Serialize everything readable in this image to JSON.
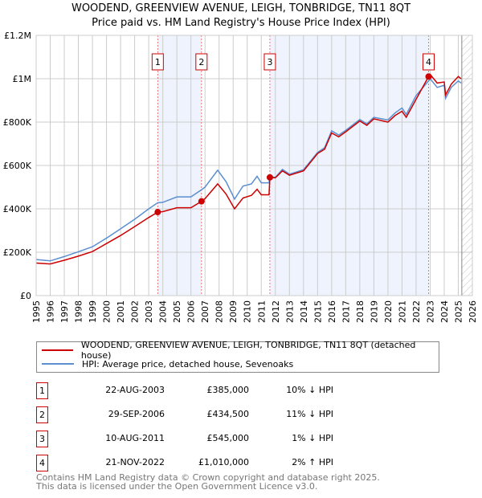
{
  "chart_data": {
    "type": "line",
    "title": "WOODEND, GREENVIEW AVENUE, LEIGH, TONBRIDGE, TN11 8QT",
    "subtitle": "Price paid vs. HM Land Registry's House Price Index (HPI)",
    "xlim": [
      1995,
      2026
    ],
    "ylim": [
      0,
      1200000
    ],
    "x_ticks": [
      "1995",
      "1996",
      "1997",
      "1998",
      "1999",
      "2000",
      "2001",
      "2002",
      "2003",
      "2004",
      "2005",
      "2006",
      "2007",
      "2008",
      "2009",
      "2010",
      "2011",
      "2012",
      "2013",
      "2014",
      "2015",
      "2016",
      "2017",
      "2018",
      "2019",
      "2020",
      "2021",
      "2022",
      "2023",
      "2024",
      "2025",
      "2026"
    ],
    "y_ticks": [
      {
        "v": 0,
        "label": "£0"
      },
      {
        "v": 200000,
        "label": "£200K"
      },
      {
        "v": 400000,
        "label": "£400K"
      },
      {
        "v": 600000,
        "label": "£600K"
      },
      {
        "v": 800000,
        "label": "£800K"
      },
      {
        "v": 1000000,
        "label": "£1M"
      },
      {
        "v": 1200000,
        "label": "£1.2M"
      }
    ],
    "grid": true,
    "series": [
      {
        "name": "WOODEND, GREENVIEW AVENUE, LEIGH, TONBRIDGE, TN11 8QT (detached house)",
        "color": "#cc0000",
        "x": [
          1995,
          1996,
          1997,
          1998,
          1999,
          2000,
          2001,
          2002,
          2003,
          2003.64,
          2004,
          2005,
          2006,
          2006.75,
          2007,
          2007.9,
          2008.5,
          2009.1,
          2009.7,
          2010.3,
          2010.7,
          2011,
          2011.55,
          2011.61,
          2012,
          2012.5,
          2013,
          2014,
          2015,
          2015.5,
          2016,
          2016.5,
          2017,
          2018,
          2018.5,
          2019,
          2020,
          2020.5,
          2021,
          2021.3,
          2022,
          2022.89,
          2023,
          2023.5,
          2024,
          2024.1,
          2024.5,
          2025,
          2025.2
        ],
        "y": [
          150000,
          146000,
          163000,
          182000,
          203000,
          240000,
          277000,
          318000,
          360000,
          385000,
          387000,
          405000,
          405000,
          434500,
          447000,
          515000,
          468000,
          400000,
          450000,
          462000,
          490000,
          465000,
          465000,
          545000,
          543000,
          575000,
          555000,
          575000,
          655000,
          675000,
          750000,
          732000,
          755000,
          805000,
          785000,
          815000,
          800000,
          830000,
          850000,
          822000,
          905000,
          1010000,
          1020000,
          980000,
          985000,
          925000,
          975000,
          1010000,
          1000000
        ]
      },
      {
        "name": "HPI: Average price, detached house, Sevenoaks",
        "color": "#5b8fd0",
        "x": [
          1995,
          1996,
          1997,
          1998,
          1999,
          2000,
          2001,
          2002,
          2003,
          2003.64,
          2004,
          2005,
          2006,
          2006.75,
          2007,
          2007.9,
          2008.5,
          2009.1,
          2009.7,
          2010.3,
          2010.7,
          2011,
          2011.55,
          2011.61,
          2012,
          2012.5,
          2013,
          2014,
          2015,
          2015.5,
          2016,
          2016.5,
          2017,
          2018,
          2018.5,
          2019,
          2020,
          2020.5,
          2021,
          2021.3,
          2022,
          2022.89,
          2023,
          2023.5,
          2024,
          2024.1,
          2024.5,
          2025,
          2025.2
        ],
        "y": [
          166000,
          160000,
          180000,
          202000,
          225000,
          265000,
          308000,
          352000,
          400000,
          428000,
          430000,
          455000,
          455000,
          488000,
          500000,
          578000,
          525000,
          445000,
          505000,
          515000,
          550000,
          520000,
          520000,
          548000,
          545000,
          582000,
          560000,
          580000,
          660000,
          682000,
          760000,
          740000,
          762000,
          812000,
          792000,
          822000,
          810000,
          842000,
          865000,
          835000,
          922000,
          990000,
          1000000,
          960000,
          970000,
          910000,
          960000,
          990000,
          980000
        ]
      }
    ],
    "sales": [
      {
        "num": "1",
        "x": 2003.64,
        "date": "22-AUG-2003",
        "price": "£385,000",
        "value": 385000,
        "hpi": "10% ↓ HPI"
      },
      {
        "num": "2",
        "x": 2006.75,
        "date": "29-SEP-2006",
        "price": "£434,500",
        "value": 434500,
        "hpi": "11% ↓ HPI"
      },
      {
        "num": "3",
        "x": 2011.61,
        "date": "10-AUG-2011",
        "price": "£545,000",
        "value": 545000,
        "hpi": "1% ↓ HPI"
      },
      {
        "num": "4",
        "x": 2022.89,
        "date": "21-NOV-2022",
        "price": "£1,010,000",
        "value": 1010000,
        "hpi": "2% ↑ HPI"
      }
    ],
    "shaded": [
      [
        2003.64,
        2006.75
      ],
      [
        2011.61,
        2022.89
      ]
    ],
    "forecast_start": 2025.25
  },
  "footer": {
    "line1": "Contains HM Land Registry data © Crown copyright and database right 2025.",
    "line2": "This data is licensed under the Open Government Licence v3.0."
  }
}
